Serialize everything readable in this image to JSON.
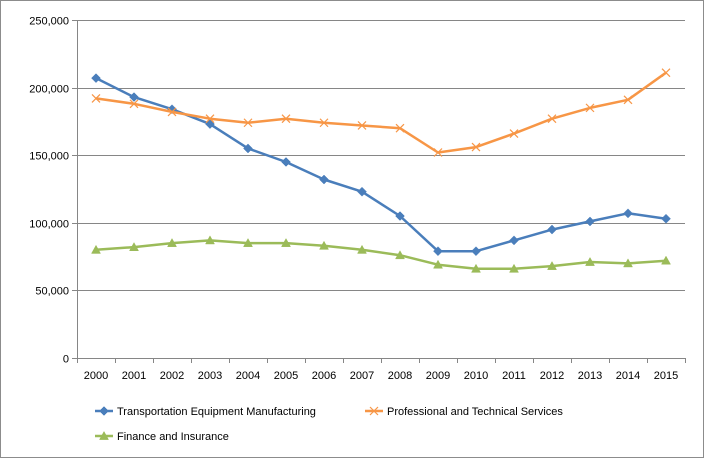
{
  "chart_data": {
    "type": "line",
    "title": "",
    "xlabel": "",
    "ylabel": "",
    "x": [
      "2000",
      "2001",
      "2002",
      "2003",
      "2004",
      "2005",
      "2006",
      "2007",
      "2008",
      "2009",
      "2010",
      "2011",
      "2012",
      "2013",
      "2014",
      "2015"
    ],
    "ylim": [
      0,
      250000
    ],
    "yticks": [
      0,
      50000,
      100000,
      150000,
      200000,
      250000
    ],
    "ytick_labels": [
      "0",
      "50,000",
      "100,000",
      "150,000",
      "200,000",
      "250,000"
    ],
    "grid": true,
    "legend_position": "bottom",
    "series": [
      {
        "name": "Transportation Equipment Manufacturing",
        "color": "#4a7ebb",
        "marker": "diamond",
        "values": [
          207000,
          193000,
          184000,
          173000,
          155000,
          145000,
          132000,
          123000,
          105000,
          79000,
          79000,
          87000,
          95000,
          101000,
          107000,
          103000
        ]
      },
      {
        "name": "Professional and Technical Services",
        "color": "#f79646",
        "marker": "x",
        "values": [
          192000,
          188000,
          182000,
          177000,
          174000,
          177000,
          174000,
          172000,
          170000,
          152000,
          156000,
          166000,
          177000,
          185000,
          191000,
          211000
        ]
      },
      {
        "name": "Finance and Insurance",
        "color": "#9bbb59",
        "marker": "triangle",
        "values": [
          80000,
          82000,
          85000,
          87000,
          85000,
          85000,
          83000,
          80000,
          76000,
          69000,
          66000,
          66000,
          68000,
          71000,
          70000,
          72000
        ]
      }
    ]
  }
}
